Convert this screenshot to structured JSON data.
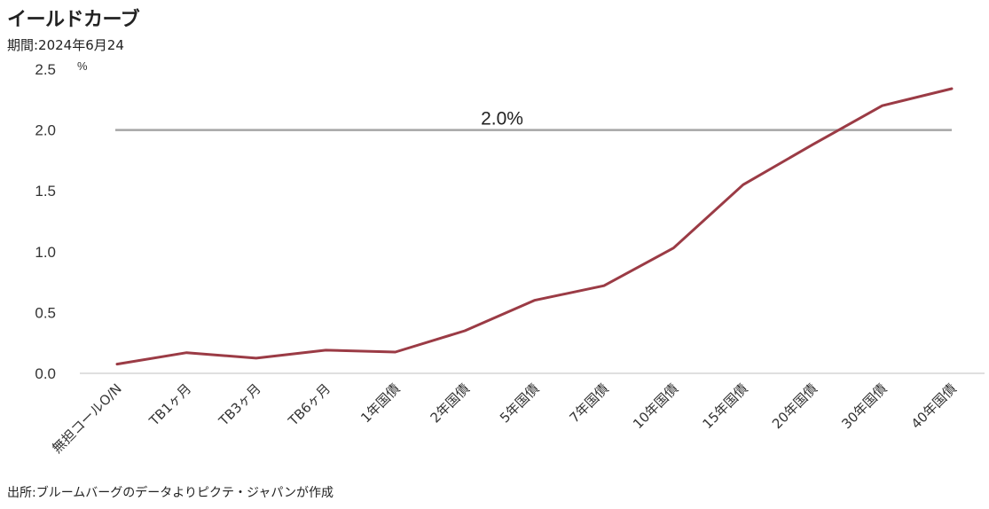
{
  "header": {
    "title": "イールドカーブ",
    "subtitle": "期間:2024年6月24"
  },
  "footer": {
    "source": "出所:ブルームバーグのデータよりピクテ・ジャパンが作成"
  },
  "chart_data": {
    "type": "line",
    "title": "イールドカーブ",
    "subtitle": "期間:2024年6月24",
    "ylabel": "%",
    "xlabel": "",
    "ylim": [
      0,
      2.5
    ],
    "yticks": [
      "0.0",
      "0.5",
      "1.0",
      "1.5",
      "2.0",
      "2.5"
    ],
    "categories": [
      "無担コールO/N",
      "TB1ヶ月",
      "TB3ヶ月",
      "TB6ヶ月",
      "1年国債",
      "2年国債",
      "5年国債",
      "7年国債",
      "10年国債",
      "15年国債",
      "20年国債",
      "30年国債",
      "40年国債"
    ],
    "series": [
      {
        "values": [
          0.076,
          0.17,
          0.125,
          0.19,
          0.175,
          0.35,
          0.6,
          0.72,
          1.03,
          1.55,
          1.88,
          2.2,
          2.34
        ],
        "color": "#9b3b45"
      }
    ],
    "reference_line": {
      "value": 2.0,
      "label": "2.0%",
      "color": "#a6a6a6"
    },
    "grid": false,
    "legend": "none"
  }
}
